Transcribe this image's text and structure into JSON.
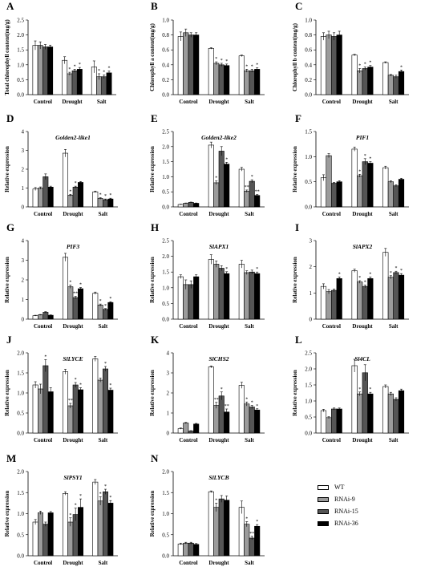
{
  "groups": [
    "Control",
    "Drought",
    "Salt"
  ],
  "series_names": [
    "WT",
    "RNAi-9",
    "RNAi-15",
    "RNAi-36"
  ],
  "series_colors": [
    "#ffffff",
    "#9b9b9b",
    "#555555",
    "#000000"
  ],
  "chart_data": [
    {
      "letter": "A",
      "type": "bar",
      "title": "",
      "ylabel": "Total chlorophyll content(mg/g)",
      "ylim": [
        0,
        2.5
      ],
      "yticks": [
        "0.0",
        "0.5",
        "1.0",
        "1.5",
        "2.0",
        "2.5"
      ],
      "values": [
        [
          1.65,
          1.65,
          1.6,
          1.6
        ],
        [
          1.15,
          0.7,
          0.8,
          0.85
        ],
        [
          0.93,
          0.6,
          0.6,
          0.73
        ]
      ],
      "errors": [
        [
          0.15,
          0.12,
          0.08,
          0.06
        ],
        [
          0.12,
          0.05,
          0.05,
          0.06
        ],
        [
          0.2,
          0.1,
          0.06,
          0.06
        ]
      ],
      "marks": [
        [
          "",
          "",
          "",
          ""
        ],
        [
          "",
          "*",
          "*",
          "*"
        ],
        [
          "",
          "*",
          "*",
          "*"
        ]
      ]
    },
    {
      "letter": "B",
      "type": "bar",
      "title": "",
      "ylabel": "Chlorophyll a content(mg/g)",
      "ylim": [
        0,
        1.0
      ],
      "yticks": [
        "0.0",
        "0.2",
        "0.4",
        "0.6",
        "0.8",
        "1.0"
      ],
      "values": [
        [
          0.78,
          0.83,
          0.8,
          0.8
        ],
        [
          0.62,
          0.42,
          0.4,
          0.39
        ],
        [
          0.52,
          0.32,
          0.32,
          0.34
        ]
      ],
      "errors": [
        [
          0.06,
          0.05,
          0.03,
          0.03
        ],
        [
          0.01,
          0.02,
          0.02,
          0.02
        ],
        [
          0.01,
          0.02,
          0.02,
          0.02
        ]
      ],
      "marks": [
        [
          "",
          "",
          "",
          ""
        ],
        [
          "",
          "*",
          "*",
          "*"
        ],
        [
          "",
          "*",
          "*",
          "*"
        ]
      ]
    },
    {
      "letter": "C",
      "type": "bar",
      "title": "",
      "ylabel": "Chlorophyll b content(mg/g)",
      "ylim": [
        0,
        1.0
      ],
      "yticks": [
        "0.0",
        "0.2",
        "0.4",
        "0.6",
        "0.8",
        "1.0"
      ],
      "values": [
        [
          0.78,
          0.8,
          0.78,
          0.8
        ],
        [
          0.53,
          0.32,
          0.35,
          0.37
        ],
        [
          0.43,
          0.26,
          0.24,
          0.31
        ]
      ],
      "errors": [
        [
          0.05,
          0.05,
          0.05,
          0.05
        ],
        [
          0.01,
          0.03,
          0.02,
          0.02
        ],
        [
          0.01,
          0.01,
          0.02,
          0.02
        ]
      ],
      "marks": [
        [
          "",
          "",
          "",
          ""
        ],
        [
          "",
          "*",
          "*",
          "*"
        ],
        [
          "",
          "",
          "",
          "*"
        ]
      ]
    },
    {
      "letter": "D",
      "type": "bar",
      "title": "Golden2-like1",
      "ylabel": "Relative expression",
      "ylim": [
        0,
        4
      ],
      "yticks": [
        "0",
        "1",
        "2",
        "3",
        "4"
      ],
      "values": [
        [
          0.95,
          1.0,
          1.6,
          1.05
        ],
        [
          2.85,
          0.62,
          1.05,
          1.3
        ],
        [
          0.8,
          0.45,
          0.38,
          0.42
        ]
      ],
      "errors": [
        [
          0.08,
          0.06,
          0.15,
          0.05
        ],
        [
          0.2,
          0.05,
          0.05,
          0.05
        ],
        [
          0.04,
          0.04,
          0.04,
          0.04
        ]
      ],
      "marks": [
        [
          "",
          "",
          "",
          ""
        ],
        [
          "",
          "*",
          "*",
          ""
        ],
        [
          "",
          "*",
          "*",
          "*"
        ]
      ]
    },
    {
      "letter": "E",
      "type": "bar",
      "title": "Golden2-like2",
      "ylabel": "Relative expression",
      "ylim": [
        0,
        2.5
      ],
      "yticks": [
        "0.0",
        "0.5",
        "1.0",
        "1.5",
        "2.0",
        "2.5"
      ],
      "values": [
        [
          0.08,
          0.12,
          0.15,
          0.12
        ],
        [
          2.05,
          0.8,
          1.85,
          1.42
        ],
        [
          1.25,
          0.52,
          0.85,
          0.38
        ]
      ],
      "errors": [
        [
          0.01,
          0.01,
          0.01,
          0.01
        ],
        [
          0.1,
          0.06,
          0.15,
          0.06
        ],
        [
          0.06,
          0.04,
          0.05,
          0.03
        ]
      ],
      "marks": [
        [
          "",
          "",
          "",
          ""
        ],
        [
          "",
          "*",
          "",
          "*"
        ],
        [
          "",
          "**",
          "*",
          "**"
        ]
      ]
    },
    {
      "letter": "F",
      "type": "bar",
      "title": "PIF1",
      "ylabel": "Relative expression",
      "ylim": [
        0,
        1.5
      ],
      "yticks": [
        "0.0",
        "0.5",
        "1.0",
        "1.5"
      ],
      "values": [
        [
          0.58,
          1.02,
          0.47,
          0.5
        ],
        [
          1.15,
          0.62,
          0.9,
          0.87
        ],
        [
          0.78,
          0.5,
          0.42,
          0.55
        ]
      ],
      "errors": [
        [
          0.06,
          0.04,
          0.02,
          0.02
        ],
        [
          0.04,
          0.03,
          0.06,
          0.03
        ],
        [
          0.03,
          0.02,
          0.02,
          0.02
        ]
      ],
      "marks": [
        [
          "",
          "",
          "",
          ""
        ],
        [
          "",
          "*",
          "*",
          "*"
        ],
        [
          "",
          "",
          "",
          ""
        ]
      ]
    },
    {
      "letter": "G",
      "type": "bar",
      "title": "PIF3",
      "ylabel": "Relative expression",
      "ylim": [
        0,
        4
      ],
      "yticks": [
        "0",
        "1",
        "2",
        "3",
        "4"
      ],
      "values": [
        [
          0.18,
          0.22,
          0.35,
          0.2
        ],
        [
          3.15,
          1.65,
          1.1,
          1.55
        ],
        [
          1.32,
          0.72,
          0.5,
          0.85
        ]
      ],
      "errors": [
        [
          0.02,
          0.02,
          0.03,
          0.02
        ],
        [
          0.2,
          0.08,
          0.06,
          0.06
        ],
        [
          0.06,
          0.05,
          0.04,
          0.04
        ]
      ],
      "marks": [
        [
          "",
          "",
          "",
          ""
        ],
        [
          "",
          "*",
          "**",
          "*"
        ],
        [
          "",
          "*",
          "*",
          "*"
        ]
      ]
    },
    {
      "letter": "H",
      "type": "bar",
      "title": "SlAPX1",
      "ylabel": "Relative expression",
      "ylim": [
        0,
        2.5
      ],
      "yticks": [
        "0.0",
        "0.5",
        "1.0",
        "1.5",
        "2.0",
        "2.5"
      ],
      "values": [
        [
          1.35,
          1.1,
          1.1,
          1.35
        ],
        [
          1.9,
          1.75,
          1.62,
          1.45
        ],
        [
          1.75,
          1.48,
          1.5,
          1.45
        ]
      ],
      "errors": [
        [
          0.06,
          0.15,
          0.12,
          0.06
        ],
        [
          0.15,
          0.1,
          0.08,
          0.06
        ],
        [
          0.12,
          0.06,
          0.06,
          0.05
        ]
      ],
      "marks": [
        [
          "",
          "",
          "",
          ""
        ],
        [
          "",
          "",
          "",
          "*"
        ],
        [
          "",
          "",
          "",
          "*"
        ]
      ]
    },
    {
      "letter": "I",
      "type": "bar",
      "title": "SlAPX2",
      "ylabel": "Relative expression",
      "ylim": [
        0,
        3
      ],
      "yticks": [
        "0",
        "1",
        "2",
        "3"
      ],
      "values": [
        [
          1.25,
          1.05,
          1.1,
          1.55
        ],
        [
          1.85,
          1.42,
          1.25,
          1.55
        ],
        [
          2.55,
          1.6,
          1.78,
          1.68
        ]
      ],
      "errors": [
        [
          0.1,
          0.08,
          0.05,
          0.06
        ],
        [
          0.06,
          0.05,
          0.05,
          0.06
        ],
        [
          0.15,
          0.06,
          0.05,
          0.06
        ]
      ],
      "marks": [
        [
          "",
          "",
          "",
          "*"
        ],
        [
          "",
          "*",
          "*",
          "*"
        ],
        [
          "",
          "*",
          "*",
          "*"
        ]
      ]
    },
    {
      "letter": "J",
      "type": "bar",
      "title": "SlLYCE",
      "ylabel": "Relative expression",
      "ylim": [
        0,
        2.0
      ],
      "yticks": [
        "0.0",
        "0.5",
        "1.0",
        "1.5",
        "2.0"
      ],
      "values": [
        [
          1.2,
          1.1,
          1.68,
          1.03
        ],
        [
          1.53,
          0.68,
          1.2,
          1.08
        ],
        [
          1.85,
          1.32,
          1.6,
          1.07
        ]
      ],
      "errors": [
        [
          0.08,
          0.12,
          0.15,
          0.1
        ],
        [
          0.06,
          0.06,
          0.06,
          0.05
        ],
        [
          0.06,
          0.05,
          0.06,
          0.05
        ]
      ],
      "marks": [
        [
          "",
          "",
          "*",
          ""
        ],
        [
          "",
          "**",
          "*",
          "*"
        ],
        [
          "",
          "",
          "*",
          "*"
        ]
      ]
    },
    {
      "letter": "K",
      "type": "bar",
      "title": "SlCHS2",
      "ylabel": "Relative expression",
      "ylim": [
        0,
        4
      ],
      "yticks": [
        "0",
        "1",
        "2",
        "3",
        "4"
      ],
      "values": [
        [
          0.22,
          0.5,
          0.1,
          0.45
        ],
        [
          3.3,
          1.38,
          1.85,
          1.05
        ],
        [
          2.38,
          1.45,
          1.3,
          1.15
        ]
      ],
      "errors": [
        [
          0.03,
          0.03,
          0.02,
          0.03
        ],
        [
          0.05,
          0.15,
          0.2,
          0.15
        ],
        [
          0.15,
          0.1,
          0.08,
          0.06
        ]
      ],
      "marks": [
        [
          "",
          "",
          "",
          ""
        ],
        [
          "",
          "**",
          "*",
          "**"
        ],
        [
          "",
          "*",
          "*",
          "*"
        ]
      ]
    },
    {
      "letter": "L",
      "type": "bar",
      "title": "Sl4CL",
      "ylabel": "Relative expression",
      "ylim": [
        0,
        2.5
      ],
      "yticks": [
        "0.0",
        "0.5",
        "1.0",
        "1.5",
        "2.0",
        "2.5"
      ],
      "values": [
        [
          0.7,
          0.48,
          0.75,
          0.75
        ],
        [
          2.1,
          1.22,
          1.88,
          1.22
        ],
        [
          1.45,
          1.22,
          1.05,
          1.32
        ]
      ],
      "errors": [
        [
          0.04,
          0.03,
          0.03,
          0.03
        ],
        [
          0.2,
          0.06,
          0.25,
          0.05
        ],
        [
          0.05,
          0.05,
          0.05,
          0.05
        ]
      ],
      "marks": [
        [
          "",
          "",
          "",
          ""
        ],
        [
          "",
          "*",
          "",
          "*"
        ],
        [
          "",
          "",
          "",
          ""
        ]
      ]
    },
    {
      "letter": "M",
      "type": "bar",
      "title": "SlPSY1",
      "ylabel": "Relative expression",
      "ylim": [
        0,
        2.0
      ],
      "yticks": [
        "0.0",
        "0.5",
        "1.0",
        "1.5",
        "2.0"
      ],
      "values": [
        [
          0.8,
          1.02,
          0.75,
          1.02
        ],
        [
          1.48,
          0.8,
          0.98,
          1.15
        ],
        [
          1.75,
          1.3,
          1.52,
          1.25
        ]
      ],
      "errors": [
        [
          0.06,
          0.04,
          0.05,
          0.03
        ],
        [
          0.04,
          0.1,
          0.15,
          0.2
        ],
        [
          0.06,
          0.1,
          0.06,
          0.06
        ]
      ],
      "marks": [
        [
          "",
          "",
          "",
          ""
        ],
        [
          "",
          "*",
          "*",
          "*"
        ],
        [
          "",
          "*",
          "*",
          "*"
        ]
      ]
    },
    {
      "letter": "N",
      "type": "bar",
      "title": "SlLYCB",
      "ylabel": "Relative expression",
      "ylim": [
        0,
        2.0
      ],
      "yticks": [
        "0.0",
        "0.5",
        "1.0",
        "1.5",
        "2.0"
      ],
      "values": [
        [
          0.28,
          0.3,
          0.3,
          0.27
        ],
        [
          1.52,
          1.15,
          1.35,
          1.32
        ],
        [
          1.15,
          0.75,
          0.42,
          0.7
        ]
      ],
      "errors": [
        [
          0.02,
          0.02,
          0.02,
          0.02
        ],
        [
          0.02,
          0.1,
          0.08,
          0.1
        ],
        [
          0.15,
          0.06,
          0.04,
          0.04
        ]
      ],
      "marks": [
        [
          "",
          "",
          "",
          ""
        ],
        [
          "",
          "*",
          "",
          ""
        ],
        [
          "",
          "*",
          "**",
          "*"
        ]
      ]
    }
  ]
}
